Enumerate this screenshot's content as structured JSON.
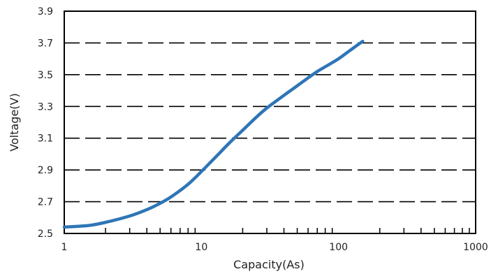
{
  "chart_data": {
    "type": "line",
    "title": "",
    "xlabel": "Capacity(As)",
    "ylabel": "Voltage(V)",
    "x_scale": "log",
    "xlim": [
      1,
      1000
    ],
    "ylim": [
      2.5,
      3.9
    ],
    "x_ticks": [
      1,
      10,
      100,
      1000
    ],
    "x_tick_labels": [
      "1",
      "10",
      "100",
      "1000"
    ],
    "y_ticks": [
      2.5,
      2.7,
      2.9,
      3.1,
      3.3,
      3.5,
      3.7,
      3.9
    ],
    "y_tick_labels": [
      "2.5",
      "2.7",
      "2.9",
      "3.1",
      "3.3",
      "3.5",
      "3.7",
      "3.9"
    ],
    "grid": "horizontal dashed",
    "series": [
      {
        "color": "#2e75b6",
        "x": [
          1,
          1.5,
          2,
          3,
          4,
          5,
          6,
          8,
          10,
          13,
          16,
          20,
          25,
          30,
          40,
          50,
          60,
          70,
          80,
          100,
          120,
          150
        ],
        "y": [
          2.54,
          2.55,
          2.57,
          2.61,
          2.65,
          2.69,
          2.73,
          2.81,
          2.89,
          2.99,
          3.07,
          3.15,
          3.23,
          3.29,
          3.37,
          3.43,
          3.48,
          3.52,
          3.55,
          3.6,
          3.65,
          3.71
        ]
      }
    ]
  }
}
